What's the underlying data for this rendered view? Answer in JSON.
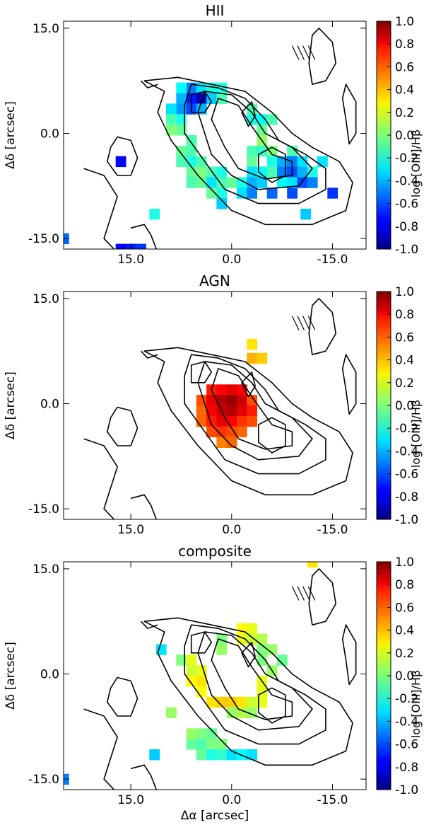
{
  "figure": {
    "colormap": "jet",
    "contour_color": "#000000",
    "frame_color": "#000000"
  },
  "chart_data": [
    {
      "type": "heatmap",
      "title": "HII",
      "xlabel": "",
      "ylabel": "Δδ [arcsec]",
      "xlim": [
        25.0,
        -20.0
      ],
      "ylim": [
        -16.5,
        16.0
      ],
      "xticks": [
        15.0,
        0.0,
        -15.0
      ],
      "xtick_labels": [
        "15.0",
        "0.0",
        "-15.0"
      ],
      "yticks": [
        15.0,
        0.0,
        -15.0
      ],
      "ytick_labels": [
        "15.0",
        "0.0",
        "-15.0"
      ],
      "colorbar": {
        "label": "log [OIII]/Hβ",
        "range": [
          -1.0,
          1.0
        ],
        "ticks": [
          1.0,
          0.8,
          0.6,
          0.4,
          0.2,
          0.0,
          -0.2,
          -0.4,
          -0.6,
          -0.8,
          -1.0
        ],
        "tick_labels": [
          "1.0",
          "0.8",
          "0.6",
          "0.4",
          "0.2",
          "0.0",
          "-0.2",
          "-0.4",
          "-0.6",
          "-0.8",
          "-1.0"
        ]
      },
      "pixel_size_arcsec": 1.5,
      "pixels": [
        [
          6.0,
          6.5,
          -0.5
        ],
        [
          4.5,
          6.5,
          -0.3
        ],
        [
          7.5,
          6.5,
          -0.25
        ],
        [
          3.0,
          6.5,
          -0.2
        ],
        [
          1.5,
          6.5,
          -0.2
        ],
        [
          6.0,
          5.0,
          -0.7
        ],
        [
          4.5,
          5.0,
          -0.9
        ],
        [
          7.5,
          5.0,
          -0.4
        ],
        [
          3.0,
          5.0,
          -0.35
        ],
        [
          1.5,
          5.0,
          -0.1
        ],
        [
          7.5,
          3.5,
          -0.45
        ],
        [
          6.0,
          3.5,
          -0.6
        ],
        [
          4.5,
          3.5,
          -0.4
        ],
        [
          9.0,
          3.5,
          -0.3
        ],
        [
          -3.0,
          3.5,
          -0.1
        ],
        [
          7.5,
          2.0,
          -0.2
        ],
        [
          9.0,
          2.0,
          -0.1
        ],
        [
          -3.0,
          2.0,
          -0.2
        ],
        [
          -4.5,
          2.0,
          -0.25
        ],
        [
          -6.0,
          2.0,
          -0.1
        ],
        [
          7.5,
          0.5,
          -0.05
        ],
        [
          9.0,
          0.5,
          0.0
        ],
        [
          -4.5,
          0.5,
          -0.05
        ],
        [
          6.0,
          -1.0,
          -0.1
        ],
        [
          -4.5,
          -1.0,
          0.05
        ],
        [
          7.5,
          -2.5,
          -0.05
        ],
        [
          6.0,
          -2.5,
          -0.1
        ],
        [
          -3.0,
          -2.5,
          -0.1
        ],
        [
          -4.5,
          -2.5,
          -0.15
        ],
        [
          -6.0,
          -2.5,
          0.0
        ],
        [
          -9.0,
          -2.5,
          -0.1
        ],
        [
          6.0,
          -4.0,
          -0.2
        ],
        [
          7.5,
          -4.0,
          -0.1
        ],
        [
          4.5,
          -4.0,
          -0.1
        ],
        [
          -3.0,
          -4.0,
          -0.05
        ],
        [
          -6.0,
          -4.0,
          -0.2
        ],
        [
          -7.5,
          -4.0,
          -0.4
        ],
        [
          -9.0,
          -4.0,
          -0.5
        ],
        [
          -10.5,
          -4.0,
          -0.3
        ],
        [
          -13.5,
          -4.0,
          -0.3
        ],
        [
          6.0,
          -5.5,
          -0.05
        ],
        [
          4.5,
          -5.5,
          0.0
        ],
        [
          3.0,
          -5.5,
          -0.1
        ],
        [
          1.5,
          -5.5,
          -0.2
        ],
        [
          -3.0,
          -5.5,
          -0.3
        ],
        [
          -4.5,
          -5.5,
          -0.25
        ],
        [
          -6.0,
          -5.5,
          -0.1
        ],
        [
          -7.5,
          -5.5,
          -0.5
        ],
        [
          -9.0,
          -5.5,
          -0.6
        ],
        [
          -10.5,
          -5.5,
          -0.4
        ],
        [
          -12.0,
          -5.5,
          -0.2
        ],
        [
          6.0,
          -7.0,
          -0.1
        ],
        [
          4.5,
          -7.0,
          -0.05
        ],
        [
          3.0,
          -7.0,
          -0.3
        ],
        [
          1.5,
          -7.0,
          -0.1
        ],
        [
          0.0,
          -7.0,
          -0.05
        ],
        [
          -1.5,
          -7.0,
          -0.2
        ],
        [
          -3.0,
          -7.0,
          -0.4
        ],
        [
          -4.5,
          -7.0,
          -0.35
        ],
        [
          -7.5,
          -7.0,
          -0.25
        ],
        [
          -9.0,
          -7.0,
          -0.3
        ],
        [
          -10.5,
          -7.0,
          -0.6
        ],
        [
          -12.0,
          -7.0,
          -0.5
        ],
        [
          3.0,
          -8.5,
          -0.05
        ],
        [
          1.5,
          -8.5,
          -0.2
        ],
        [
          -1.5,
          -8.5,
          -0.3
        ],
        [
          -3.0,
          -8.5,
          -0.5
        ],
        [
          -6.0,
          -8.5,
          -0.55
        ],
        [
          -9.0,
          -8.5,
          -0.6
        ],
        [
          1.5,
          -10.0,
          -0.35
        ],
        [
          16.5,
          -4.0,
          -0.75
        ],
        [
          -15.0,
          -8.5,
          -0.65
        ],
        [
          11.5,
          -11.5,
          -0.2
        ],
        [
          -11.0,
          -11.5,
          -0.35
        ],
        [
          25.0,
          -15.0,
          -0.55
        ],
        [
          16.5,
          -16.5,
          -0.75
        ],
        [
          15.0,
          -16.5,
          -0.7
        ],
        [
          13.5,
          -16.5,
          -0.65
        ]
      ]
    },
    {
      "type": "heatmap",
      "title": "AGN",
      "xlabel": "",
      "ylabel": "Δδ [arcsec]",
      "xlim": [
        25.0,
        -20.0
      ],
      "ylim": [
        -16.5,
        16.0
      ],
      "xticks": [
        15.0,
        0.0,
        -15.0
      ],
      "xtick_labels": [
        "15.0",
        "0.0",
        "-15.0"
      ],
      "yticks": [
        15.0,
        0.0,
        -15.0
      ],
      "ytick_labels": [
        "15.0",
        "0.0",
        "-15.0"
      ],
      "colorbar": {
        "label": "log [OIII]/Hβ",
        "range": [
          -1.0,
          1.0
        ],
        "ticks": [
          1.0,
          0.8,
          0.6,
          0.4,
          0.2,
          0.0,
          -0.2,
          -0.4,
          -0.6,
          -0.8,
          -1.0
        ],
        "tick_labels": [
          "1.0",
          "0.8",
          "0.6",
          "0.4",
          "0.2",
          "0.0",
          "-0.2",
          "-0.4",
          "-0.6",
          "-0.8",
          "-1.0"
        ]
      },
      "pixel_size_arcsec": 1.5,
      "pixels": [
        [
          -3.0,
          8.5,
          0.3
        ],
        [
          -3.0,
          6.5,
          0.4
        ],
        [
          -4.5,
          6.5,
          0.35
        ],
        [
          3.0,
          2.0,
          0.7
        ],
        [
          1.5,
          2.0,
          0.75
        ],
        [
          0.0,
          2.0,
          0.8
        ],
        [
          -1.5,
          2.0,
          0.75
        ],
        [
          4.5,
          0.5,
          0.6
        ],
        [
          3.0,
          0.5,
          0.8
        ],
        [
          1.5,
          0.5,
          0.9
        ],
        [
          0.0,
          0.5,
          0.95
        ],
        [
          -1.5,
          0.5,
          0.85
        ],
        [
          -3.0,
          0.5,
          0.6
        ],
        [
          4.5,
          -1.0,
          0.55
        ],
        [
          3.0,
          -1.0,
          0.75
        ],
        [
          1.5,
          -1.0,
          0.85
        ],
        [
          0.0,
          -1.0,
          0.9
        ],
        [
          -1.5,
          -1.0,
          0.8
        ],
        [
          -3.0,
          -1.0,
          0.7
        ],
        [
          4.5,
          -2.5,
          0.55
        ],
        [
          3.0,
          -2.5,
          0.7
        ],
        [
          1.5,
          -2.5,
          0.8
        ],
        [
          0.0,
          -2.5,
          0.75
        ],
        [
          -1.5,
          -2.5,
          0.65
        ],
        [
          -3.0,
          -2.5,
          0.6
        ],
        [
          3.0,
          -4.0,
          0.6
        ],
        [
          1.5,
          -4.0,
          0.65
        ],
        [
          0.0,
          -4.0,
          0.6
        ],
        [
          -1.5,
          -4.0,
          0.55
        ],
        [
          1.5,
          -5.5,
          0.5
        ],
        [
          0.0,
          -5.5,
          0.55
        ]
      ]
    },
    {
      "type": "heatmap",
      "title": "composite",
      "xlabel": "Δα [arcsec]",
      "ylabel": "Δδ [arcsec]",
      "xlim": [
        25.0,
        -20.0
      ],
      "ylim": [
        -16.5,
        16.0
      ],
      "xticks": [
        15.0,
        0.0,
        -15.0
      ],
      "xtick_labels": [
        "15.0",
        "0.0",
        "-15.0"
      ],
      "yticks": [
        15.0,
        0.0,
        -15.0
      ],
      "ytick_labels": [
        "15.0",
        "0.0",
        "-15.0"
      ],
      "colorbar": {
        "label": "log [OIII]/Hβ",
        "range": [
          -1.0,
          1.0
        ],
        "ticks": [
          1.0,
          0.8,
          0.6,
          0.4,
          0.2,
          0.0,
          -0.2,
          -0.4,
          -0.6,
          -0.8,
          -1.0
        ],
        "tick_labels": [
          "1.0",
          "0.8",
          "0.6",
          "0.4",
          "0.2",
          "0.0",
          "-0.2",
          "-0.4",
          "-0.6",
          "-0.8",
          "-1.0"
        ]
      },
      "pixel_size_arcsec": 1.5,
      "pixels": [
        [
          -12.0,
          16.0,
          0.3
        ],
        [
          -1.5,
          6.5,
          0.25
        ],
        [
          -3.0,
          6.5,
          0.2
        ],
        [
          1.5,
          5.0,
          0.0
        ],
        [
          -1.5,
          5.0,
          0.2
        ],
        [
          -3.0,
          5.0,
          0.15
        ],
        [
          -4.5,
          5.0,
          0.1
        ],
        [
          10.5,
          3.5,
          -0.3
        ],
        [
          1.5,
          3.5,
          0.05
        ],
        [
          -4.5,
          3.5,
          0.0
        ],
        [
          -6.0,
          3.5,
          0.05
        ],
        [
          7.5,
          2.0,
          0.0
        ],
        [
          6.0,
          2.0,
          0.2
        ],
        [
          -4.5,
          2.0,
          0.0
        ],
        [
          -7.5,
          2.0,
          -0.05
        ],
        [
          6.0,
          0.5,
          0.15
        ],
        [
          4.5,
          0.5,
          0.2
        ],
        [
          -6.0,
          0.5,
          0.05
        ],
        [
          6.0,
          -1.0,
          0.25
        ],
        [
          4.5,
          -1.0,
          0.3
        ],
        [
          -4.5,
          -1.0,
          0.2
        ],
        [
          4.5,
          -2.5,
          0.25
        ],
        [
          -4.5,
          -2.5,
          0.2
        ],
        [
          3.0,
          -4.0,
          0.3
        ],
        [
          1.5,
          -4.0,
          0.35
        ],
        [
          0.0,
          -4.0,
          0.35
        ],
        [
          -1.5,
          -4.0,
          0.3
        ],
        [
          -3.0,
          -4.0,
          0.15
        ],
        [
          -4.5,
          -4.0,
          0.2
        ],
        [
          9.0,
          -5.5,
          0.05
        ],
        [
          0.0,
          -5.5,
          0.05
        ],
        [
          -1.5,
          -5.5,
          0.1
        ],
        [
          -3.0,
          -5.5,
          0.05
        ],
        [
          6.0,
          -8.5,
          0.05
        ],
        [
          4.5,
          -8.5,
          0.0
        ],
        [
          3.0,
          -8.5,
          -0.05
        ],
        [
          6.0,
          -10.0,
          -0.05
        ],
        [
          4.5,
          -10.0,
          -0.1
        ],
        [
          3.0,
          -10.0,
          0.0
        ],
        [
          1.5,
          -10.0,
          0.0
        ],
        [
          4.5,
          -11.5,
          -0.05
        ],
        [
          3.0,
          -11.5,
          -0.2
        ],
        [
          1.5,
          -11.5,
          -0.15
        ],
        [
          0.0,
          -11.5,
          -0.3
        ],
        [
          -1.5,
          -11.5,
          -0.25
        ],
        [
          -3.0,
          -11.5,
          -0.3
        ],
        [
          11.5,
          -11.5,
          -0.35
        ],
        [
          25.0,
          -15.0,
          -0.5
        ]
      ]
    }
  ]
}
